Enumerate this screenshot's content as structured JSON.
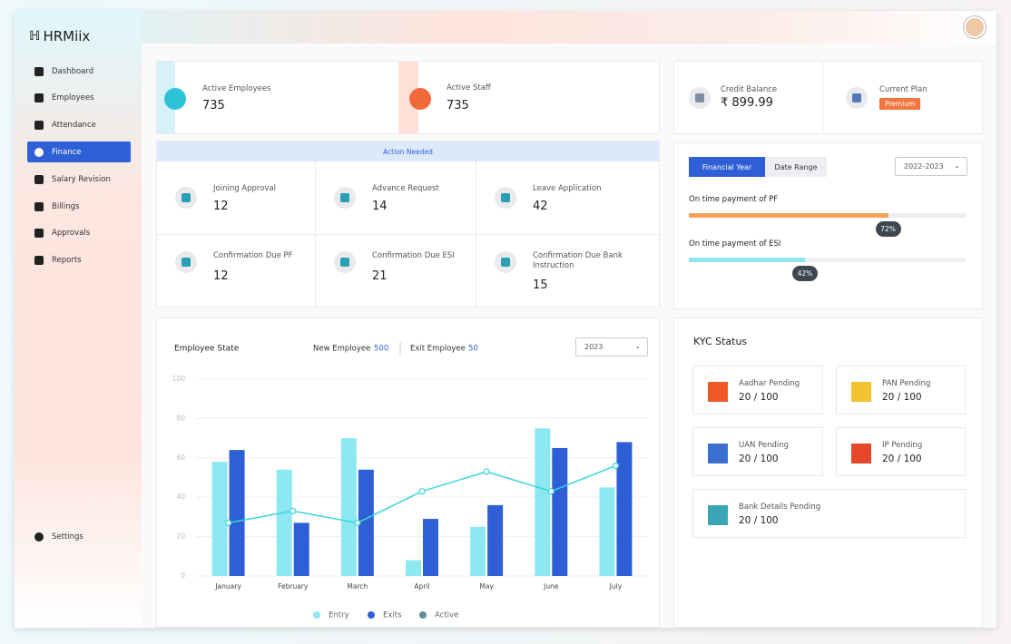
{
  "brand": "HRMiix",
  "sidebar": {
    "items": [
      "Dashboard",
      "Employees",
      "Attendance",
      "Finance",
      "Salary Revision",
      "Billings",
      "Approvals",
      "Reports"
    ],
    "settings": "Settings"
  },
  "stats": [
    {
      "label": "Active Employees",
      "value": 735
    },
    {
      "label": "Active Staff",
      "value": 735
    }
  ],
  "account": {
    "credit_label": "Credit Balance",
    "credit_value": "₹ 899.99",
    "plan_label": "Current Plan",
    "plan_badge": "Premium"
  },
  "action_needed": {
    "title": "Action Needed",
    "items": [
      {
        "label": "Joining Approval",
        "value": 12
      },
      {
        "label": "Advance Request",
        "value": 14
      },
      {
        "label": "Leave Application",
        "value": 42
      },
      {
        "label": "Confirmation Due PF",
        "value": 12
      },
      {
        "label": "Confirmation Due ESI",
        "value": 21
      },
      {
        "label": "Confirmation Due Bank Instruction",
        "value": 15
      }
    ]
  },
  "payments": {
    "tabs": [
      "Financial Year",
      "Date Range"
    ],
    "select": "2022-2023",
    "xlim": [
      0,
      100
    ],
    "bars": [
      {
        "label": "On time payment of PF",
        "value": 72,
        "value_label": "72%",
        "color": "#f4a25a"
      },
      {
        "label": "On time payment of ESI",
        "value": 42,
        "value_label": "42%",
        "color": "#8fe6f0"
      }
    ]
  },
  "kyc": {
    "title": "KYC Status",
    "items": [
      {
        "label": "Aadhar Pending",
        "value": "20 / 100"
      },
      {
        "label": "PAN Pending",
        "value": "20 / 100"
      },
      {
        "label": "UAN Pending",
        "value": "20 / 100"
      },
      {
        "label": "IP Pending",
        "value": "20 / 100"
      },
      {
        "label": "Bank Details Pending",
        "value": "20 / 100"
      }
    ]
  },
  "chart_data": {
    "type": "bar",
    "title": "Employee State",
    "new_employee": {
      "label": "New Employee",
      "value": 500
    },
    "exit_employee": {
      "label": "Exit Employee",
      "value": 50
    },
    "select": "2023",
    "categories": [
      "January",
      "February",
      "March",
      "April",
      "May",
      "June",
      "July"
    ],
    "series": [
      {
        "name": "Entry",
        "color": "#8ee8f2",
        "values": [
          58,
          54,
          70,
          8,
          25,
          75,
          45
        ]
      },
      {
        "name": "Exits",
        "color": "#2f5fd6",
        "values": [
          64,
          27,
          54,
          29,
          36,
          65,
          68
        ]
      },
      {
        "name": "Active",
        "type": "line",
        "color": "#3ad5dc",
        "legend_color": "#5f8d98",
        "values": [
          27,
          33,
          27,
          43,
          53,
          43,
          56
        ]
      }
    ],
    "ylim": [
      0,
      100
    ],
    "yticks": [
      0,
      20,
      40,
      60,
      80,
      100
    ],
    "grid": true
  }
}
